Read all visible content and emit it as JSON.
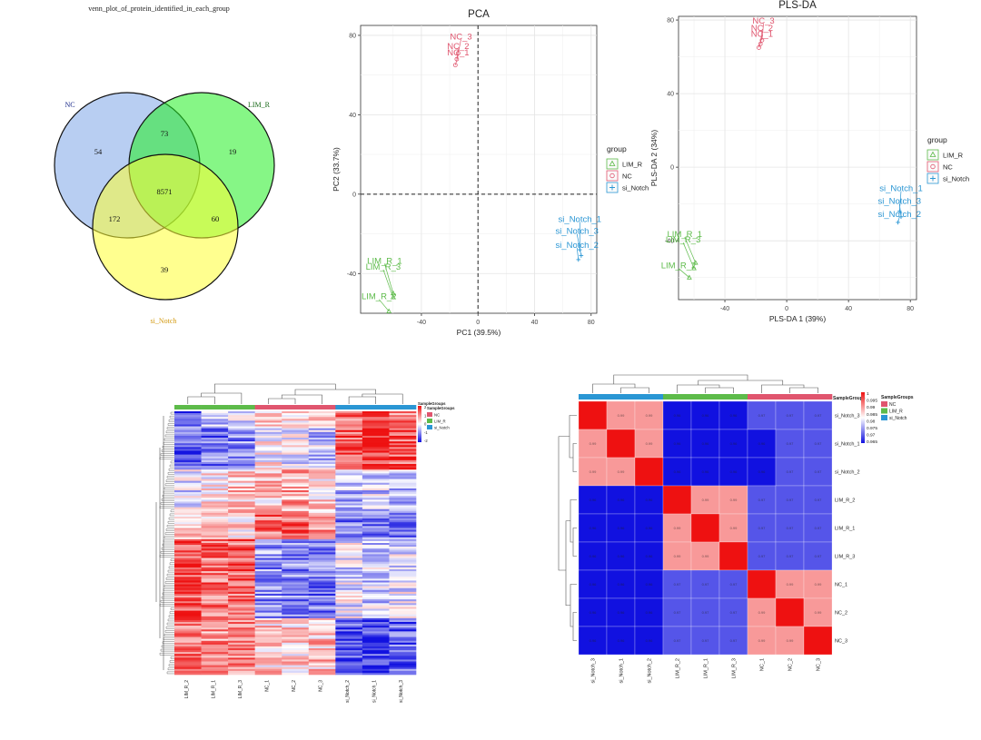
{
  "colors": {
    "nc": "#E0556E",
    "lim": "#5DBB4A",
    "notch": "#2A96D4",
    "low": "#1111E0",
    "mid": "#FFFFFF",
    "high": "#EE1111"
  },
  "chart_data": [
    {
      "type": "venn",
      "title": "venn_plot_of_protein_identified_in_each_group",
      "sets": [
        "NC",
        "LIM_R",
        "si_Notch"
      ],
      "regions": {
        "NC": 54,
        "LIM_R": 19,
        "si_Notch": 39,
        "NC&LIM_R": 73,
        "NC&si_Notch": 172,
        "LIM_R&si_Notch": 60,
        "NC&LIM_R&si_Notch": 8571
      }
    },
    {
      "type": "scatter",
      "title": "PCA",
      "xlabel": "PC1 (39.5%)",
      "ylabel": "PC2 (33.7%)",
      "xlim": [
        -83,
        84
      ],
      "ylim": [
        -60,
        85
      ],
      "xticks": [
        -40,
        0,
        40,
        80
      ],
      "yticks": [
        -40,
        0,
        40,
        80
      ],
      "legend_title": "group",
      "legend": [
        "LIM_R",
        "NC",
        "si_Notch"
      ],
      "points": [
        {
          "label": "NC_3",
          "group": "NC",
          "x": -14,
          "y": 71,
          "lx": -12,
          "ly": 78
        },
        {
          "label": "NC_2",
          "group": "NC",
          "x": -15,
          "y": 68,
          "lx": -14,
          "ly": 73
        },
        {
          "label": "NC_1",
          "group": "NC",
          "x": -16,
          "y": 65,
          "lx": -14,
          "ly": 70
        },
        {
          "label": "LIM_R_1",
          "group": "LIM_R",
          "x": -60,
          "y": -50,
          "lx": -66,
          "ly": -35
        },
        {
          "label": "LIM_R_3",
          "group": "LIM_R",
          "x": -60,
          "y": -52,
          "lx": -67,
          "ly": -38
        },
        {
          "label": "LIM_R_2",
          "group": "LIM_R",
          "x": -63,
          "y": -59,
          "lx": -70,
          "ly": -53
        },
        {
          "label": "si_Notch_1",
          "group": "si_Notch",
          "x": 72,
          "y": -28,
          "lx": 72,
          "ly": -14
        },
        {
          "label": "si_Notch_3",
          "group": "si_Notch",
          "x": 73,
          "y": -31,
          "lx": 70,
          "ly": -20
        },
        {
          "label": "si_Notch_2",
          "group": "si_Notch",
          "x": 71,
          "y": -33,
          "lx": 70,
          "ly": -27
        }
      ]
    },
    {
      "type": "scatter",
      "title": "PLS-DA",
      "xlabel": "PLS-DA 1 (39%)",
      "ylabel": "PLS-DA 2 (34%)",
      "xlim": [
        -70,
        84
      ],
      "ylim": [
        -72,
        82
      ],
      "xticks": [
        -40,
        0,
        40,
        80
      ],
      "yticks": [
        -40,
        0,
        40,
        80
      ],
      "legend_title": "group",
      "legend": [
        "LIM_R",
        "NC",
        "si_Notch"
      ],
      "points": [
        {
          "label": "NC_3",
          "group": "NC",
          "x": -16,
          "y": 69,
          "lx": -15,
          "ly": 78
        },
        {
          "label": "NC_2",
          "group": "NC",
          "x": -17,
          "y": 67,
          "lx": -16,
          "ly": 74
        },
        {
          "label": "NC_1",
          "group": "NC",
          "x": -18,
          "y": 65,
          "lx": -16,
          "ly": 71
        },
        {
          "label": "LIM_R_1",
          "group": "LIM_R",
          "x": -59,
          "y": -52,
          "lx": -66,
          "ly": -38
        },
        {
          "label": "LIM_R_3",
          "group": "LIM_R",
          "x": -60,
          "y": -55,
          "lx": -67,
          "ly": -41
        },
        {
          "label": "LIM_R_2",
          "group": "LIM_R",
          "x": -63,
          "y": -60,
          "lx": -70,
          "ly": -55
        },
        {
          "label": "si_Notch_1",
          "group": "si_Notch",
          "x": 73,
          "y": -24,
          "lx": 74,
          "ly": -13
        },
        {
          "label": "si_Notch_3",
          "group": "si_Notch",
          "x": 74,
          "y": -27,
          "lx": 73,
          "ly": -20
        },
        {
          "label": "si_Notch_2",
          "group": "si_Notch",
          "x": 72,
          "y": -30,
          "lx": 73,
          "ly": -27
        }
      ]
    },
    {
      "type": "heatmap",
      "columns": [
        "LIM_R_2",
        "LIM_R_1",
        "LIM_R_3",
        "NC_1",
        "NC_2",
        "NC_3",
        "si_Notch_2",
        "si_Notch_1",
        "si_Notch_3"
      ],
      "column_groups": [
        "LIM_R",
        "LIM_R",
        "LIM_R",
        "NC",
        "NC",
        "NC",
        "si_Notch",
        "si_Notch",
        "si_Notch"
      ],
      "annotation_title": "SampleGroups",
      "colorbar_ticks": [
        "2",
        "1",
        "0",
        "-1",
        "-2"
      ],
      "legend_title": "SampleGroups",
      "legend": [
        "NC",
        "LIM_R",
        "si_Notch"
      ]
    },
    {
      "type": "heatmap",
      "rows": [
        "si_Notch_3",
        "si_Notch_1",
        "si_Notch_2",
        "LIM_R_2",
        "LIM_R_1",
        "LIM_R_3",
        "NC_1",
        "NC_2",
        "NC_3"
      ],
      "columns": [
        "si_Notch_3",
        "si_Notch_1",
        "si_Notch_2",
        "LIM_R_2",
        "LIM_R_1",
        "LIM_R_3",
        "NC_1",
        "NC_2",
        "NC_3"
      ],
      "column_groups": [
        "si_Notch",
        "si_Notch",
        "si_Notch",
        "LIM_R",
        "LIM_R",
        "LIM_R",
        "NC",
        "NC",
        "NC"
      ],
      "annotation_title": "SampleGroups",
      "colorbar_min": 0.965,
      "colorbar_max": 1,
      "colorbar_ticks": [
        "1",
        "0.995",
        "0.99",
        "0.985",
        "0.98",
        "0.975",
        "0.97",
        "0.965"
      ],
      "legend_title": "SampleGroups",
      "legend": [
        "NC",
        "LIM_R",
        "si_Notch"
      ],
      "values": [
        [
          1,
          0.99,
          0.99,
          0.96,
          0.96,
          0.96,
          0.97,
          0.97,
          0.97
        ],
        [
          0.99,
          1,
          0.99,
          0.96,
          0.96,
          0.96,
          0.96,
          0.97,
          0.97
        ],
        [
          0.99,
          0.99,
          1,
          0.96,
          0.96,
          0.96,
          0.96,
          0.97,
          0.97
        ],
        [
          0.96,
          0.96,
          0.96,
          1,
          0.99,
          0.99,
          0.97,
          0.97,
          0.97
        ],
        [
          0.96,
          0.96,
          0.96,
          0.99,
          1,
          0.99,
          0.97,
          0.97,
          0.97
        ],
        [
          0.96,
          0.96,
          0.96,
          0.99,
          0.99,
          1,
          0.97,
          0.97,
          0.97
        ],
        [
          0.96,
          0.96,
          0.96,
          0.97,
          0.97,
          0.97,
          1,
          0.99,
          0.99
        ],
        [
          0.96,
          0.96,
          0.96,
          0.97,
          0.97,
          0.97,
          0.99,
          1,
          0.99
        ],
        [
          0.96,
          0.96,
          0.96,
          0.97,
          0.97,
          0.97,
          0.99,
          0.99,
          1
        ]
      ]
    }
  ]
}
